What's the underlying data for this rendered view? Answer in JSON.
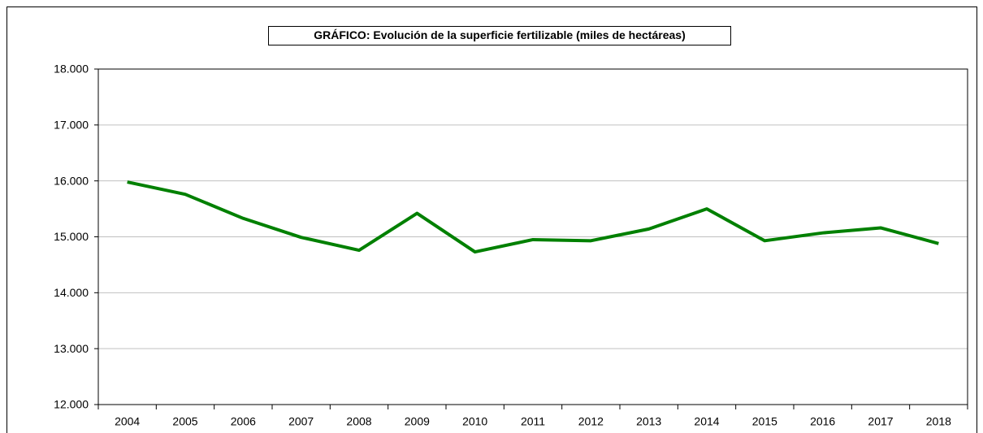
{
  "chart_data": {
    "type": "line",
    "title": "GRÁFICO: Evolución de la superficie fertilizable (miles de hectáreas)",
    "categories": [
      "2004",
      "2005",
      "2006",
      "2007",
      "2008",
      "2009",
      "2010",
      "2011",
      "2012",
      "2013",
      "2014",
      "2015",
      "2016",
      "2017",
      "2018"
    ],
    "series": [
      {
        "name": "Superficie fertilizable",
        "color": "#008000",
        "values": [
          15980,
          15760,
          15330,
          14990,
          14760,
          15420,
          14730,
          14950,
          14930,
          15140,
          15500,
          14930,
          15070,
          15160,
          14880
        ]
      }
    ],
    "ylim": [
      12000,
      18000
    ],
    "yticks": [
      {
        "value": 12000,
        "label": "12.000"
      },
      {
        "value": 13000,
        "label": "13.000"
      },
      {
        "value": 14000,
        "label": "14.000"
      },
      {
        "value": 15000,
        "label": "15.000"
      },
      {
        "value": 16000,
        "label": "16.000"
      },
      {
        "value": 17000,
        "label": "17.000"
      },
      {
        "value": 18000,
        "label": "18.000"
      }
    ],
    "grid": true
  }
}
